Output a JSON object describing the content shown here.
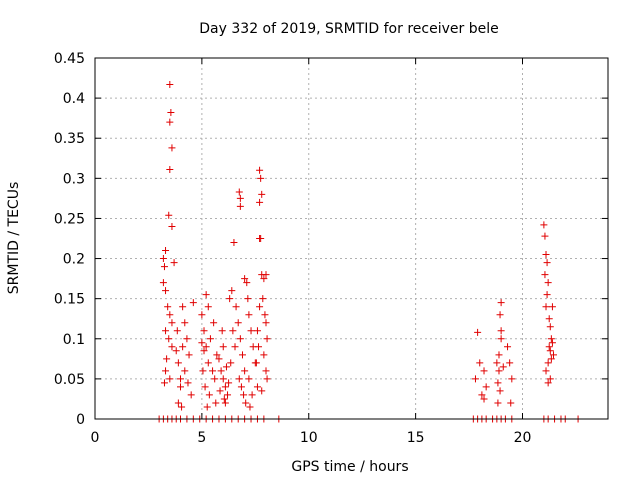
{
  "chart_data": {
    "type": "scatter",
    "title": "Day 332 of 2019, SRMTID for receiver bele",
    "xlabel": "GPS time / hours",
    "ylabel": "SRMTID / TECUs",
    "xlim": [
      0,
      24
    ],
    "ylim": [
      0,
      0.45
    ],
    "x_ticks": [
      0,
      5,
      10,
      15,
      20
    ],
    "x_tick_labels": [
      "0",
      "5",
      "10",
      "15",
      "20"
    ],
    "y_ticks": [
      0,
      0.05,
      0.1,
      0.15,
      0.2,
      0.25,
      0.3,
      0.35,
      0.4,
      0.45
    ],
    "y_tick_labels": [
      "0",
      "0.05",
      "0.1",
      "0.15",
      "0.2",
      "0.25",
      "0.3",
      "0.35",
      "0.4",
      "0.45"
    ],
    "grid": true,
    "marker": "plus",
    "marker_color": "#e00000",
    "series": [
      {
        "name": "SRMTID",
        "points": [
          [
            3.0,
            0.0
          ],
          [
            3.2,
            0.0
          ],
          [
            3.4,
            0.0
          ],
          [
            3.6,
            0.0
          ],
          [
            3.8,
            0.0
          ],
          [
            4.0,
            0.0
          ],
          [
            4.3,
            0.0
          ],
          [
            4.6,
            0.0
          ],
          [
            4.9,
            0.0
          ],
          [
            5.2,
            0.0
          ],
          [
            5.5,
            0.0
          ],
          [
            5.8,
            0.0
          ],
          [
            6.1,
            0.0
          ],
          [
            6.4,
            0.0
          ],
          [
            6.7,
            0.0
          ],
          [
            7.0,
            0.0
          ],
          [
            7.3,
            0.0
          ],
          [
            7.6,
            0.0
          ],
          [
            7.9,
            0.0
          ],
          [
            8.6,
            0.0
          ],
          [
            17.7,
            0.0
          ],
          [
            17.9,
            0.0
          ],
          [
            18.1,
            0.0
          ],
          [
            18.3,
            0.0
          ],
          [
            18.6,
            0.0
          ],
          [
            18.8,
            0.0
          ],
          [
            19.0,
            0.0
          ],
          [
            19.2,
            0.0
          ],
          [
            19.5,
            0.0
          ],
          [
            21.0,
            0.0
          ],
          [
            21.2,
            0.0
          ],
          [
            21.5,
            0.0
          ],
          [
            21.8,
            0.0
          ],
          [
            22.0,
            0.0
          ],
          [
            22.6,
            0.0
          ],
          [
            3.5,
            0.417
          ],
          [
            3.55,
            0.382
          ],
          [
            3.5,
            0.37
          ],
          [
            3.6,
            0.338
          ],
          [
            3.5,
            0.311
          ],
          [
            3.45,
            0.254
          ],
          [
            3.6,
            0.24
          ],
          [
            3.3,
            0.21
          ],
          [
            3.2,
            0.2
          ],
          [
            3.25,
            0.19
          ],
          [
            3.2,
            0.17
          ],
          [
            3.3,
            0.16
          ],
          [
            3.7,
            0.195
          ],
          [
            3.4,
            0.14
          ],
          [
            3.5,
            0.13
          ],
          [
            3.6,
            0.12
          ],
          [
            3.3,
            0.11
          ],
          [
            3.45,
            0.1
          ],
          [
            3.6,
            0.09
          ],
          [
            3.35,
            0.075
          ],
          [
            3.3,
            0.06
          ],
          [
            3.25,
            0.045
          ],
          [
            3.5,
            0.05
          ],
          [
            3.8,
            0.085
          ],
          [
            3.9,
            0.07
          ],
          [
            4.0,
            0.05
          ],
          [
            4.1,
            0.14
          ],
          [
            4.2,
            0.12
          ],
          [
            4.3,
            0.1
          ],
          [
            4.1,
            0.09
          ],
          [
            4.0,
            0.04
          ],
          [
            3.9,
            0.02
          ],
          [
            4.2,
            0.06
          ],
          [
            4.4,
            0.08
          ],
          [
            4.5,
            0.03
          ],
          [
            4.6,
            0.145
          ],
          [
            4.35,
            0.045
          ],
          [
            4.05,
            0.015
          ],
          [
            3.85,
            0.11
          ],
          [
            5.0,
            0.13
          ],
          [
            5.1,
            0.11
          ],
          [
            5.2,
            0.155
          ],
          [
            5.3,
            0.14
          ],
          [
            5.0,
            0.095
          ],
          [
            5.1,
            0.085
          ],
          [
            5.2,
            0.09
          ],
          [
            5.3,
            0.07
          ],
          [
            5.4,
            0.1
          ],
          [
            5.5,
            0.06
          ],
          [
            5.6,
            0.05
          ],
          [
            5.7,
            0.08
          ],
          [
            5.05,
            0.06
          ],
          [
            5.15,
            0.04
          ],
          [
            5.35,
            0.03
          ],
          [
            5.55,
            0.12
          ],
          [
            5.65,
            0.02
          ],
          [
            5.25,
            0.015
          ],
          [
            5.8,
            0.075
          ],
          [
            5.9,
            0.06
          ],
          [
            6.0,
            0.05
          ],
          [
            6.1,
            0.04
          ],
          [
            6.2,
            0.03
          ],
          [
            6.0,
            0.09
          ],
          [
            6.1,
            0.02
          ],
          [
            5.95,
            0.11
          ],
          [
            6.15,
            0.065
          ],
          [
            6.25,
            0.045
          ],
          [
            5.85,
            0.035
          ],
          [
            6.05,
            0.025
          ],
          [
            6.3,
            0.15
          ],
          [
            6.4,
            0.16
          ],
          [
            6.5,
            0.22
          ],
          [
            6.6,
            0.14
          ],
          [
            6.7,
            0.12
          ],
          [
            6.8,
            0.1
          ],
          [
            6.9,
            0.08
          ],
          [
            7.0,
            0.06
          ],
          [
            6.45,
            0.11
          ],
          [
            6.55,
            0.09
          ],
          [
            6.35,
            0.07
          ],
          [
            6.75,
            0.05
          ],
          [
            6.85,
            0.04
          ],
          [
            6.95,
            0.03
          ],
          [
            7.05,
            0.02
          ],
          [
            6.75,
            0.283
          ],
          [
            6.8,
            0.275
          ],
          [
            6.8,
            0.265
          ],
          [
            7.0,
            0.175
          ],
          [
            7.1,
            0.17
          ],
          [
            7.15,
            0.15
          ],
          [
            7.2,
            0.13
          ],
          [
            7.3,
            0.11
          ],
          [
            7.4,
            0.09
          ],
          [
            7.5,
            0.07
          ],
          [
            7.2,
            0.05
          ],
          [
            7.35,
            0.03
          ],
          [
            7.25,
            0.015
          ],
          [
            7.7,
            0.31
          ],
          [
            7.75,
            0.3
          ],
          [
            7.8,
            0.28
          ],
          [
            7.7,
            0.27
          ],
          [
            7.7,
            0.225
          ],
          [
            7.75,
            0.225
          ],
          [
            7.8,
            0.18
          ],
          [
            7.9,
            0.175
          ],
          [
            8.0,
            0.18
          ],
          [
            7.85,
            0.15
          ],
          [
            7.95,
            0.13
          ],
          [
            8.0,
            0.12
          ],
          [
            8.05,
            0.1
          ],
          [
            7.9,
            0.08
          ],
          [
            8.0,
            0.06
          ],
          [
            8.05,
            0.05
          ],
          [
            7.7,
            0.14
          ],
          [
            7.6,
            0.11
          ],
          [
            7.65,
            0.09
          ],
          [
            7.55,
            0.07
          ],
          [
            7.6,
            0.04
          ],
          [
            7.8,
            0.035
          ],
          [
            17.9,
            0.108
          ],
          [
            18.0,
            0.07
          ],
          [
            18.2,
            0.06
          ],
          [
            18.3,
            0.04
          ],
          [
            18.1,
            0.03
          ],
          [
            18.2,
            0.025
          ],
          [
            17.8,
            0.05
          ],
          [
            18.8,
            0.07
          ],
          [
            18.9,
            0.08
          ],
          [
            19.0,
            0.1
          ],
          [
            19.0,
            0.11
          ],
          [
            18.95,
            0.13
          ],
          [
            19.0,
            0.145
          ],
          [
            18.9,
            0.06
          ],
          [
            18.85,
            0.045
          ],
          [
            19.1,
            0.065
          ],
          [
            19.3,
            0.09
          ],
          [
            19.4,
            0.07
          ],
          [
            19.5,
            0.05
          ],
          [
            19.45,
            0.02
          ],
          [
            18.85,
            0.02
          ],
          [
            18.95,
            0.035
          ],
          [
            21.0,
            0.242
          ],
          [
            21.05,
            0.228
          ],
          [
            21.1,
            0.205
          ],
          [
            21.15,
            0.195
          ],
          [
            21.05,
            0.18
          ],
          [
            21.2,
            0.17
          ],
          [
            21.15,
            0.155
          ],
          [
            21.1,
            0.14
          ],
          [
            21.25,
            0.125
          ],
          [
            21.3,
            0.115
          ],
          [
            21.4,
            0.14
          ],
          [
            21.35,
            0.1
          ],
          [
            21.25,
            0.09
          ],
          [
            21.3,
            0.085
          ],
          [
            21.35,
            0.075
          ],
          [
            21.2,
            0.07
          ],
          [
            21.1,
            0.06
          ],
          [
            21.3,
            0.05
          ],
          [
            21.2,
            0.045
          ],
          [
            21.4,
            0.095
          ],
          [
            21.45,
            0.08
          ]
        ]
      }
    ]
  }
}
